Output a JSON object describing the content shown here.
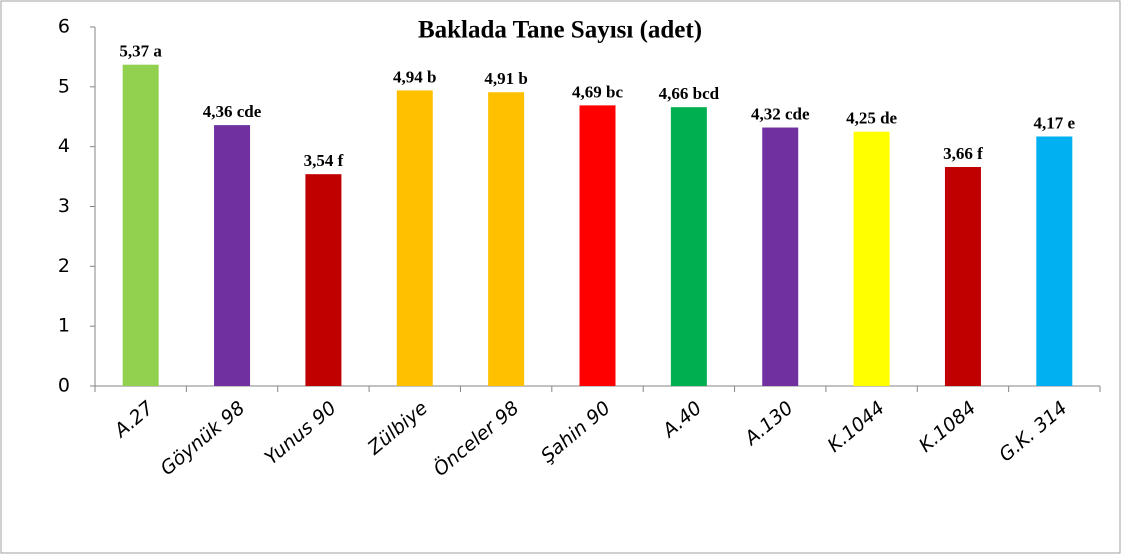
{
  "chart_data": {
    "type": "bar",
    "title": "Baklada Tane Sayısı (adet)",
    "categories": [
      "A.27",
      "Göynük 98",
      "Yunus 90",
      "Zülbiye",
      "Önceler 98",
      "Şahin 90",
      "A.40",
      "A.130",
      "K.1044",
      "K.1084",
      "G.K. 314"
    ],
    "values": [
      5.37,
      4.36,
      3.54,
      4.94,
      4.91,
      4.69,
      4.66,
      4.32,
      4.25,
      3.66,
      4.17
    ],
    "value_labels": [
      "5,37 a",
      "4,36 cde",
      "3,54 f",
      "4,94 b",
      "4,91 b",
      "4,69 bc",
      "4,66 bcd",
      "4,32 cde",
      "4,25 de",
      "3,66 f",
      "4,17 e"
    ],
    "colors": [
      "#92d050",
      "#7030a0",
      "#c00000",
      "#ffc000",
      "#ffc000",
      "#ff0000",
      "#00b050",
      "#7030a0",
      "#ffff00",
      "#c00000",
      "#00b0f0"
    ],
    "ylim": [
      0,
      6
    ],
    "yticks": [
      0,
      1,
      2,
      3,
      4,
      5,
      6
    ],
    "grid": false
  }
}
